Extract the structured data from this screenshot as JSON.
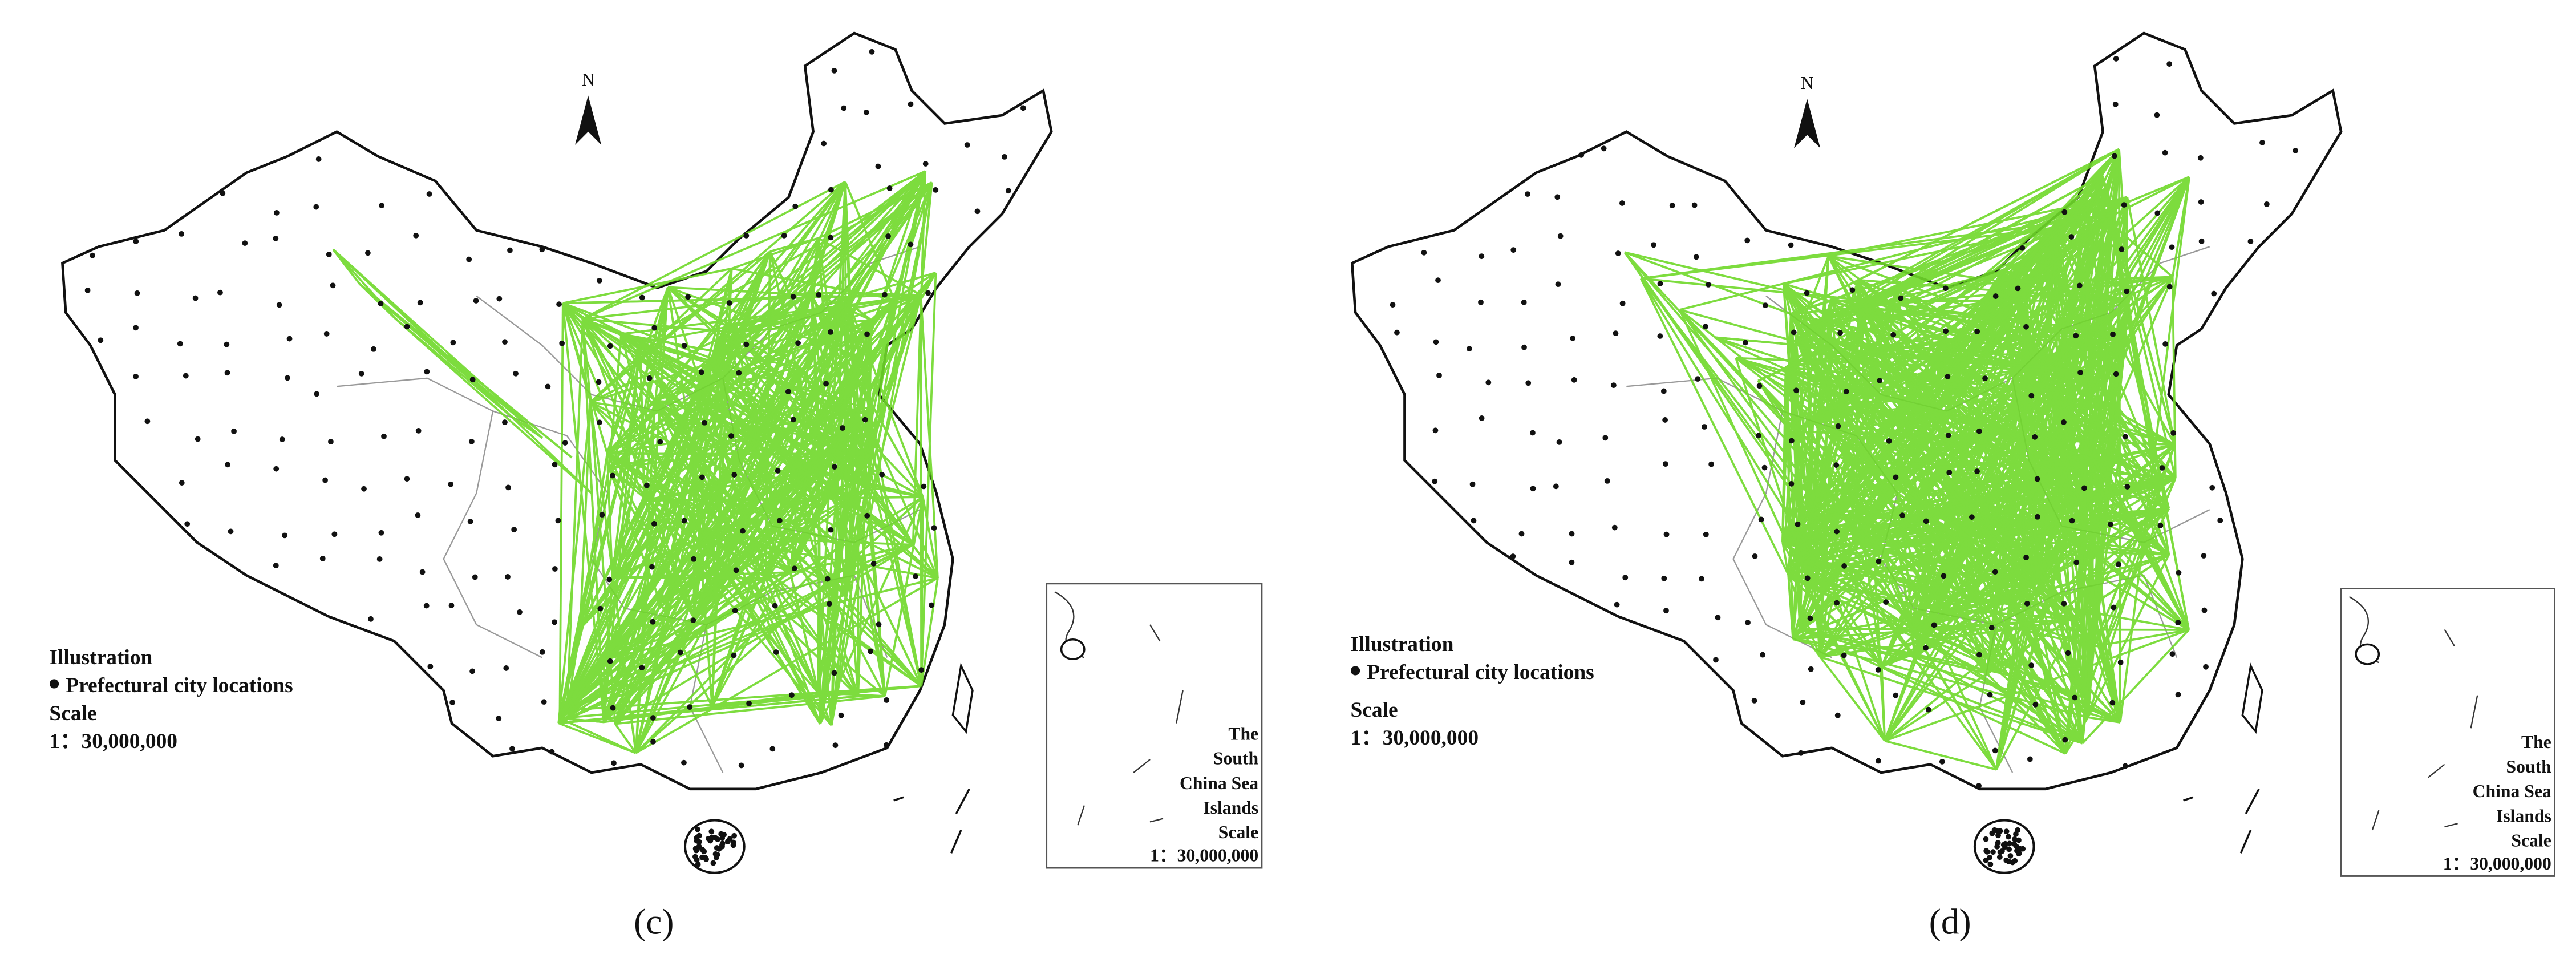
{
  "panels": [
    {
      "label": "(c)",
      "north": "N",
      "legend": {
        "title": "Illustration",
        "item": "Prefectural city locations",
        "scale_title": "Scale",
        "scale": "1：30,000,000"
      },
      "inset": {
        "lines": [
          "The",
          "South",
          "China Sea",
          "Islands",
          "Scale"
        ],
        "scale": "1：30,000,000"
      }
    },
    {
      "label": "(d)",
      "north": "N",
      "legend": {
        "title": "Illustration",
        "item": "Prefectural city locations",
        "scale_title": "Scale",
        "scale": "1：30,000,000"
      },
      "inset": {
        "lines": [
          "The",
          "South",
          "China Sea",
          "Islands",
          "Scale"
        ],
        "scale": "1：30,000,000"
      }
    }
  ]
}
